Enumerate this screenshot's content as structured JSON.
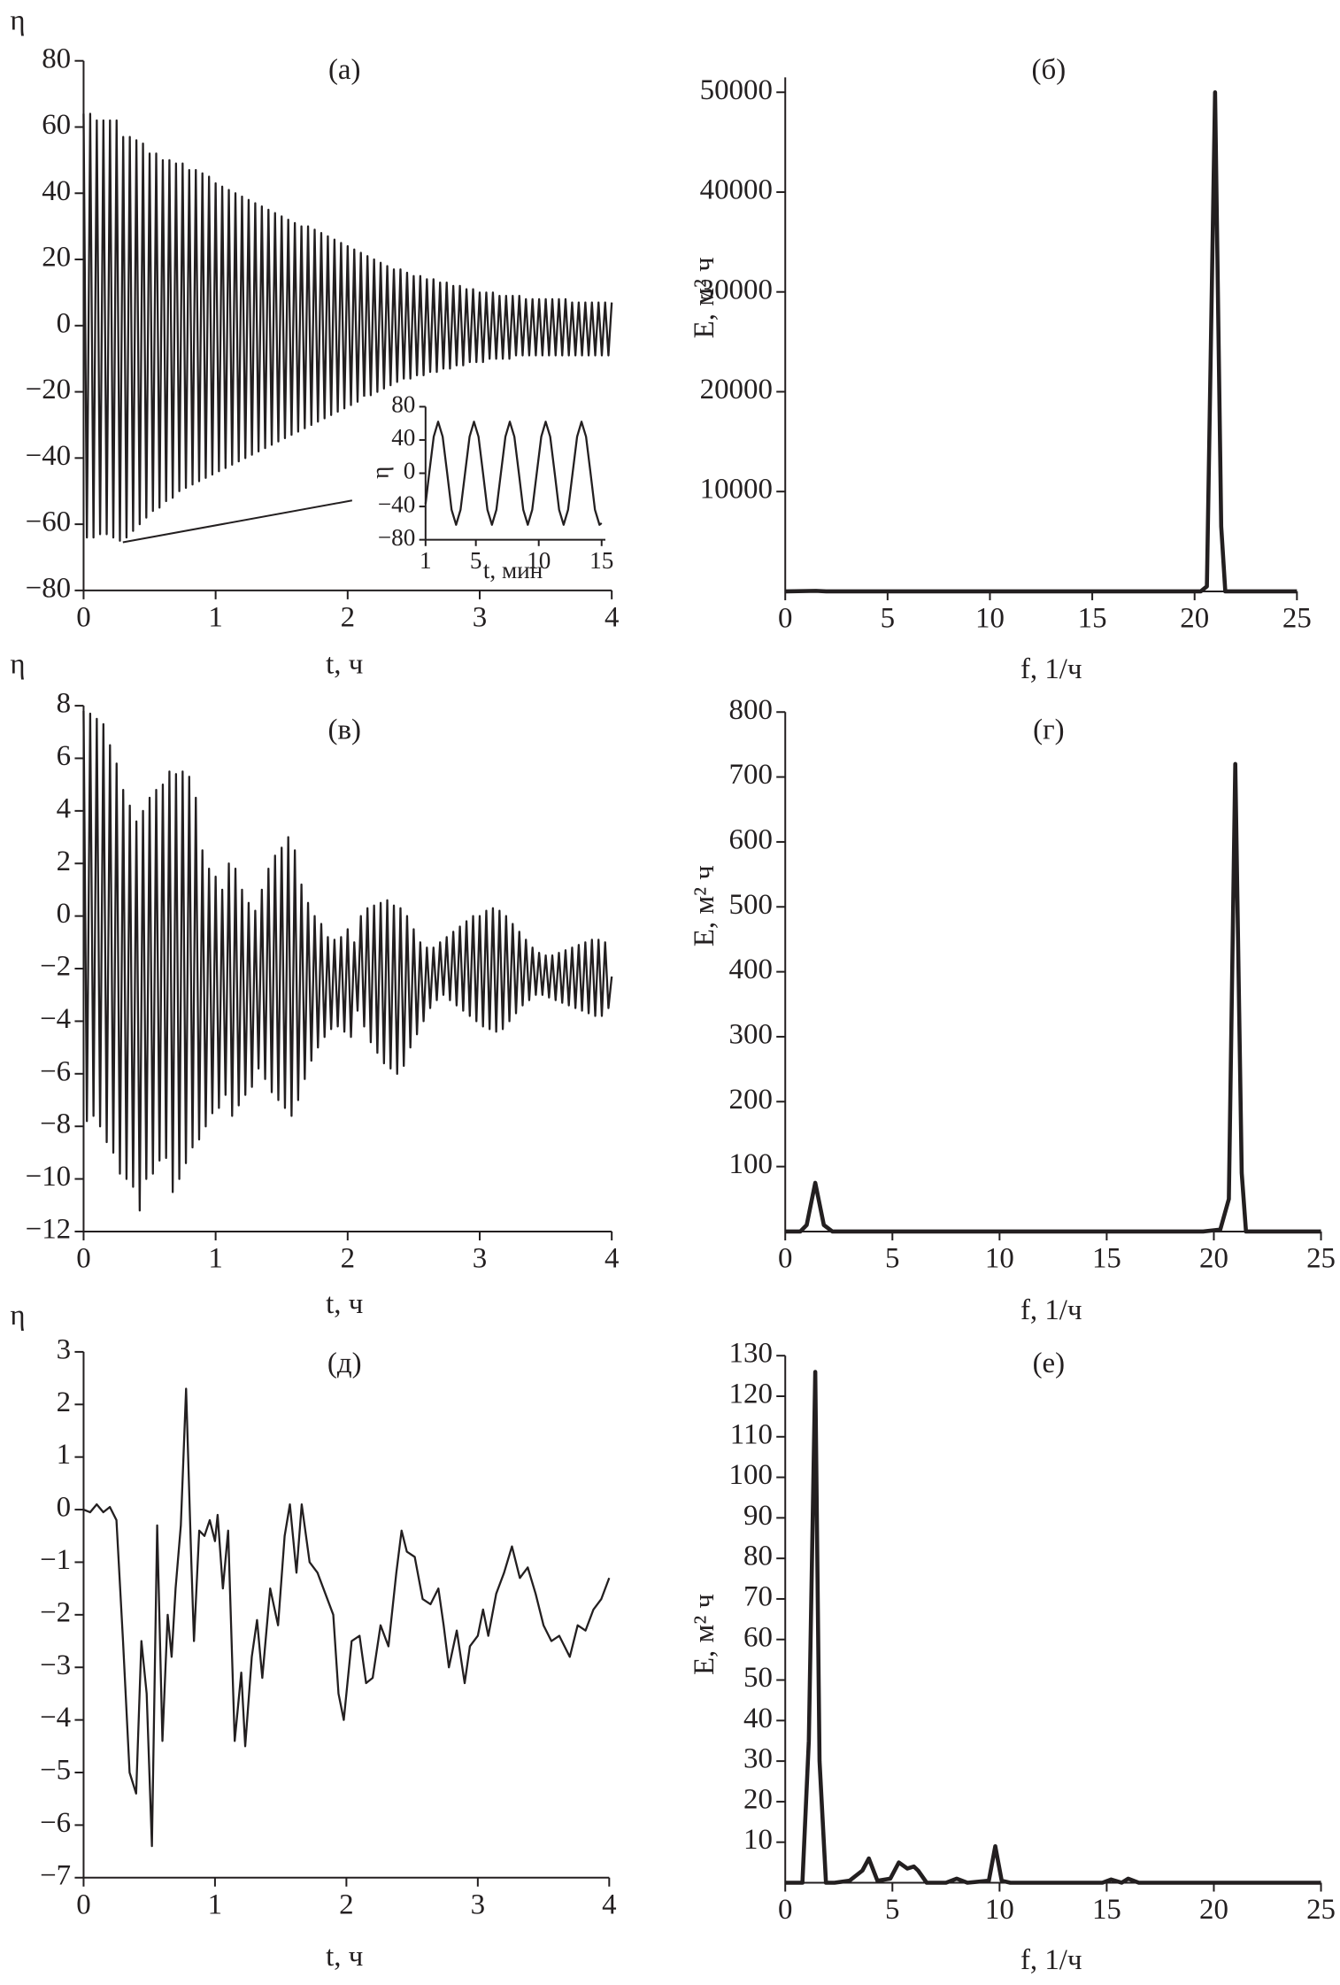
{
  "chart_data": [
    {
      "type": "line",
      "title": "(а)",
      "x_label": "t, ч",
      "y_label": "η",
      "color": "#231f20",
      "xlim": [
        0,
        4
      ],
      "ylim": [
        -80,
        80
      ],
      "xticks": [
        0,
        1,
        2,
        3,
        4
      ],
      "yticks": [
        {
          "value": -80,
          "label": "−80"
        },
        {
          "value": -60,
          "label": "−60"
        },
        {
          "value": -40,
          "label": "−40"
        },
        {
          "value": -20,
          "label": "−20"
        },
        0,
        20,
        40,
        60,
        80
      ],
      "x": [
        0,
        0.025,
        0.05,
        0.075,
        0.1,
        0.125,
        0.15,
        0.175,
        0.2,
        0.225,
        0.25,
        0.275,
        0.3,
        0.325,
        0.35,
        0.375,
        0.4,
        0.425,
        0.45,
        0.475,
        0.5,
        0.525,
        0.55,
        0.575,
        0.6,
        0.625,
        0.65,
        0.675,
        0.7,
        0.725,
        0.75,
        0.775,
        0.8,
        0.825,
        0.85,
        0.875,
        0.9,
        0.925,
        0.95,
        0.975,
        1,
        1.025,
        1.05,
        1.075,
        1.1,
        1.125,
        1.15,
        1.175,
        1.2,
        1.225,
        1.25,
        1.275,
        1.3,
        1.325,
        1.35,
        1.375,
        1.4,
        1.425,
        1.45,
        1.475,
        1.5,
        1.525,
        1.55,
        1.575,
        1.6,
        1.625,
        1.65,
        1.675,
        1.7,
        1.725,
        1.75,
        1.775,
        1.8,
        1.825,
        1.85,
        1.875,
        1.9,
        1.925,
        1.95,
        1.975,
        2,
        2.025,
        2.05,
        2.075,
        2.1,
        2.125,
        2.15,
        2.175,
        2.2,
        2.225,
        2.25,
        2.275,
        2.3,
        2.325,
        2.35,
        2.375,
        2.4,
        2.425,
        2.45,
        2.475,
        2.5,
        2.525,
        2.55,
        2.575,
        2.6,
        2.625,
        2.65,
        2.675,
        2.7,
        2.725,
        2.75,
        2.775,
        2.8,
        2.825,
        2.85,
        2.875,
        2.9,
        2.925,
        2.95,
        2.975,
        3,
        3.025,
        3.05,
        3.075,
        3.1,
        3.125,
        3.15,
        3.175,
        3.2,
        3.225,
        3.25,
        3.275,
        3.3,
        3.325,
        3.35,
        3.375,
        3.4,
        3.425,
        3.45,
        3.475,
        3.5,
        3.525,
        3.55,
        3.575,
        3.6,
        3.625,
        3.65,
        3.675,
        3.7,
        3.725,
        3.75,
        3.775,
        3.8,
        3.825,
        3.85,
        3.875,
        3.9,
        3.925,
        3.95,
        3.975,
        4
      ],
      "values": [
        64,
        -64,
        64,
        -64,
        62,
        -63,
        62,
        -63,
        62,
        -64,
        62,
        -65,
        57,
        -64,
        57,
        -62,
        56,
        -60,
        55,
        -58,
        52,
        -56,
        52,
        -55,
        50,
        -53,
        50,
        -52,
        49,
        -50,
        49,
        -49,
        47,
        -48,
        47,
        -47,
        46,
        -46,
        45,
        -45,
        43,
        -44,
        42,
        -43,
        41,
        -42,
        40,
        -41,
        39,
        -40,
        38,
        -39,
        37,
        -38,
        36,
        -37,
        35,
        -36,
        34,
        -35,
        33,
        -34,
        32,
        -33,
        31,
        -32,
        30,
        -31,
        30,
        -30,
        29,
        -29,
        28,
        -28,
        27,
        -27,
        26,
        -26,
        25,
        -25,
        24,
        -24,
        23,
        -23,
        22,
        -22,
        21,
        -21,
        20,
        -20,
        19,
        -19,
        18,
        -18,
        17,
        -17,
        17,
        -16,
        16,
        -16,
        15,
        -15,
        15,
        -15,
        14,
        -14,
        14,
        -14,
        13,
        -13,
        13,
        -13,
        12,
        -12,
        12,
        -12,
        11,
        -11,
        11,
        -11,
        10,
        -11,
        10,
        -10,
        10,
        -10,
        9,
        -10,
        9,
        -10,
        9,
        -9,
        9,
        -9,
        8,
        -9,
        8,
        -9,
        8,
        -9,
        8,
        -9,
        8,
        -9,
        8,
        -9,
        8,
        -9,
        7,
        -9,
        7,
        -9,
        7,
        -9,
        7,
        -9,
        7,
        -9,
        7,
        -9,
        7
      ]
    },
    {
      "type": "line",
      "title": "(б)",
      "x_label": "f, 1/ч",
      "y_label": "E, м² ч",
      "color": "#231f20",
      "xlim": [
        0,
        25
      ],
      "ylim": [
        0,
        51500
      ],
      "xticks": [
        0,
        5,
        10,
        15,
        20,
        25
      ],
      "yticks": [
        10000,
        20000,
        30000,
        40000,
        50000
      ],
      "x": [
        0,
        1.5,
        2,
        20.3,
        20.6,
        21,
        21.3,
        21.5,
        25
      ],
      "values": [
        0,
        50,
        0,
        0,
        500,
        50000,
        6500,
        0,
        0
      ]
    },
    {
      "type": "line",
      "title": "(в)",
      "x_label": "t, ч",
      "y_label": "η",
      "color": "#231f20",
      "xlim": [
        0,
        4
      ],
      "ylim": [
        -12,
        8
      ],
      "xticks": [
        0,
        1,
        2,
        3,
        4
      ],
      "yticks": [
        {
          "value": -12,
          "label": "−12"
        },
        {
          "value": -10,
          "label": "−10"
        },
        {
          "value": -8,
          "label": "−8"
        },
        {
          "value": -6,
          "label": "−6"
        },
        {
          "value": -4,
          "label": "−4"
        },
        {
          "value": -2,
          "label": "−2"
        },
        0,
        2,
        4,
        6,
        8
      ],
      "x": [
        0,
        0.025,
        0.05,
        0.075,
        0.1,
        0.125,
        0.15,
        0.175,
        0.2,
        0.225,
        0.25,
        0.275,
        0.3,
        0.325,
        0.35,
        0.375,
        0.4,
        0.425,
        0.45,
        0.475,
        0.5,
        0.525,
        0.55,
        0.575,
        0.6,
        0.625,
        0.65,
        0.675,
        0.7,
        0.725,
        0.75,
        0.775,
        0.8,
        0.825,
        0.85,
        0.875,
        0.9,
        0.925,
        0.95,
        0.975,
        1,
        1.025,
        1.05,
        1.075,
        1.1,
        1.125,
        1.15,
        1.175,
        1.2,
        1.225,
        1.25,
        1.275,
        1.3,
        1.325,
        1.35,
        1.375,
        1.4,
        1.425,
        1.45,
        1.475,
        1.5,
        1.525,
        1.55,
        1.575,
        1.6,
        1.625,
        1.65,
        1.675,
        1.7,
        1.725,
        1.75,
        1.775,
        1.8,
        1.825,
        1.85,
        1.875,
        1.9,
        1.925,
        1.95,
        1.975,
        2,
        2.025,
        2.05,
        2.075,
        2.1,
        2.125,
        2.15,
        2.175,
        2.2,
        2.225,
        2.25,
        2.275,
        2.3,
        2.325,
        2.35,
        2.375,
        2.4,
        2.425,
        2.45,
        2.475,
        2.5,
        2.525,
        2.55,
        2.575,
        2.6,
        2.625,
        2.65,
        2.675,
        2.7,
        2.725,
        2.75,
        2.775,
        2.8,
        2.825,
        2.85,
        2.875,
        2.9,
        2.925,
        2.95,
        2.975,
        3,
        3.025,
        3.05,
        3.075,
        3.1,
        3.125,
        3.15,
        3.175,
        3.2,
        3.225,
        3.25,
        3.275,
        3.3,
        3.325,
        3.35,
        3.375,
        3.4,
        3.425,
        3.45,
        3.475,
        3.5,
        3.525,
        3.55,
        3.575,
        3.6,
        3.625,
        3.65,
        3.675,
        3.7,
        3.725,
        3.75,
        3.775,
        3.8,
        3.825,
        3.85,
        3.875,
        3.9,
        3.925,
        3.95,
        3.975,
        4
      ],
      "values": [
        7.8,
        -7.8,
        7.7,
        -7.6,
        7.5,
        -8,
        7.3,
        -8.6,
        6.5,
        -9,
        5.8,
        -9.8,
        4.8,
        -10,
        4.2,
        -10.3,
        3.6,
        -11.2,
        4,
        -10,
        4.5,
        -9.8,
        4.8,
        -9.3,
        5,
        -9.2,
        5.5,
        -10.5,
        5.4,
        -10,
        5.5,
        -9.4,
        5.3,
        -8.8,
        4.5,
        -8.5,
        2.5,
        -8,
        1.8,
        -7.5,
        1.5,
        -7.3,
        1,
        -6.8,
        2,
        -7.6,
        1.8,
        -7.2,
        1,
        -6.8,
        0.5,
        -6.5,
        0.2,
        -5.8,
        1,
        -6.2,
        1.8,
        -6.7,
        2.3,
        -7,
        2.6,
        -7.3,
        3,
        -7.6,
        2.5,
        -7,
        1.2,
        -6.2,
        0.5,
        -5.5,
        0,
        -5,
        -0.3,
        -4.6,
        -0.8,
        -4.3,
        -0.9,
        -4.2,
        -0.8,
        -4.4,
        -0.5,
        -4.6,
        -1,
        -3.6,
        0,
        -4.2,
        0.3,
        -4.8,
        0.4,
        -5.2,
        0.5,
        -5.6,
        0.6,
        -5.8,
        0.4,
        -6,
        0.3,
        -5.7,
        0,
        -5,
        -0.5,
        -4.5,
        -1,
        -4,
        -1.2,
        -3.5,
        -1.2,
        -3.2,
        -1,
        -3,
        -0.8,
        -3.2,
        -0.6,
        -3.4,
        -0.4,
        -3.6,
        -0.2,
        -3.8,
        0,
        -4,
        0,
        -4.2,
        0.2,
        -4.3,
        0.3,
        -4.4,
        0.2,
        -4.3,
        0,
        -4,
        -0.3,
        -3.7,
        -0.6,
        -3.4,
        -0.9,
        -3.2,
        -1.2,
        -3,
        -1.4,
        -3,
        -1.5,
        -3.1,
        -1.5,
        -3.2,
        -1.4,
        -3.3,
        -1.3,
        -3.4,
        -1.2,
        -3.5,
        -1.1,
        -3.6,
        -1,
        -3.7,
        -0.9,
        -3.8,
        -0.9,
        -3.8,
        -1,
        -3.5,
        -2.3
      ]
    },
    {
      "type": "line",
      "title": "(г)",
      "x_label": "f, 1/ч",
      "y_label": "E, м² ч",
      "color": "#231f20",
      "xlim": [
        0,
        25
      ],
      "ylim": [
        0,
        800
      ],
      "xticks": [
        0,
        5,
        10,
        15,
        20,
        25
      ],
      "yticks": [
        100,
        200,
        300,
        400,
        500,
        600,
        700,
        800
      ],
      "x": [
        0,
        0.7,
        1,
        1.4,
        1.8,
        2.2,
        5,
        6,
        19.5,
        20.3,
        20.7,
        21,
        21.3,
        21.5,
        24,
        25
      ],
      "values": [
        0,
        0,
        10,
        75,
        10,
        0,
        0,
        0,
        0,
        3,
        50,
        720,
        90,
        0,
        0,
        0
      ]
    },
    {
      "type": "line",
      "title": "(д)",
      "x_label": "t, ч",
      "y_label": "η",
      "color": "#231f20",
      "xlim": [
        0,
        4
      ],
      "ylim": [
        -7,
        3
      ],
      "xticks": [
        0,
        1,
        2,
        3,
        4
      ],
      "yticks": [
        {
          "value": -7,
          "label": "−7"
        },
        {
          "value": -6,
          "label": "−6"
        },
        {
          "value": -5,
          "label": "−5"
        },
        {
          "value": -4,
          "label": "−4"
        },
        {
          "value": -3,
          "label": "−3"
        },
        {
          "value": -2,
          "label": "−2"
        },
        {
          "value": -1,
          "label": "−1"
        },
        0,
        1,
        2,
        3
      ],
      "x": [
        0,
        0.05,
        0.1,
        0.15,
        0.2,
        0.25,
        0.3,
        0.35,
        0.4,
        0.44,
        0.48,
        0.52,
        0.56,
        0.6,
        0.64,
        0.67,
        0.7,
        0.74,
        0.78,
        0.82,
        0.84,
        0.88,
        0.92,
        0.96,
        1,
        1.02,
        1.06,
        1.1,
        1.15,
        1.2,
        1.23,
        1.28,
        1.32,
        1.36,
        1.42,
        1.48,
        1.53,
        1.57,
        1.62,
        1.66,
        1.72,
        1.78,
        1.84,
        1.9,
        1.94,
        1.98,
        2.04,
        2.1,
        2.15,
        2.2,
        2.26,
        2.32,
        2.38,
        2.42,
        2.46,
        2.52,
        2.58,
        2.64,
        2.7,
        2.74,
        2.78,
        2.84,
        2.9,
        2.94,
        3,
        3.04,
        3.08,
        3.14,
        3.2,
        3.26,
        3.32,
        3.38,
        3.44,
        3.5,
        3.56,
        3.62,
        3.7,
        3.76,
        3.82,
        3.88,
        3.94,
        4
      ],
      "values": [
        0,
        -0.05,
        0.1,
        -0.05,
        0.05,
        -0.2,
        -2.5,
        -5,
        -5.4,
        -2.5,
        -3.5,
        -6.4,
        -0.3,
        -4.4,
        -2,
        -2.8,
        -1.5,
        -0.3,
        2.3,
        -1,
        -2.5,
        -0.4,
        -0.5,
        -0.2,
        -0.6,
        -0.1,
        -1.5,
        -0.4,
        -4.4,
        -3.1,
        -4.5,
        -2.8,
        -2.1,
        -3.2,
        -1.5,
        -2.2,
        -0.5,
        0.1,
        -1.2,
        0.1,
        -1,
        -1.2,
        -1.6,
        -2,
        -3.5,
        -4,
        -2.5,
        -2.4,
        -3.3,
        -3.2,
        -2.2,
        -2.6,
        -1.2,
        -0.4,
        -0.8,
        -0.9,
        -1.7,
        -1.8,
        -1.5,
        -2.2,
        -3,
        -2.3,
        -3.3,
        -2.6,
        -2.4,
        -1.9,
        -2.4,
        -1.6,
        -1.2,
        -0.7,
        -1.3,
        -1.1,
        -1.6,
        -2.2,
        -2.5,
        -2.4,
        -2.8,
        -2.2,
        -2.3,
        -1.9,
        -1.7,
        -1.3
      ]
    },
    {
      "type": "line",
      "title": "(е)",
      "x_label": "f, 1/ч",
      "y_label": "E, м² ч",
      "color": "#231f20",
      "xlim": [
        0,
        25
      ],
      "ylim": [
        0,
        130
      ],
      "xticks": [
        0,
        5,
        10,
        15,
        20,
        25
      ],
      "yticks": [
        10,
        20,
        30,
        40,
        50,
        60,
        70,
        80,
        90,
        100,
        110,
        120,
        130
      ],
      "x": [
        0,
        0.8,
        1.1,
        1.4,
        1.6,
        1.9,
        2.3,
        3,
        3.6,
        3.9,
        4.3,
        4.9,
        5.3,
        5.7,
        6,
        6.2,
        6.6,
        7.5,
        8,
        8.5,
        9.5,
        9.8,
        10.1,
        10.5,
        14.8,
        15.2,
        15.7,
        16,
        16.5,
        25
      ],
      "values": [
        0,
        0,
        35,
        126,
        30,
        0,
        0,
        0.5,
        3,
        6,
        0.5,
        1,
        5,
        3.5,
        4,
        3,
        0,
        0,
        1,
        0,
        0.5,
        9,
        0.5,
        0,
        0,
        0.8,
        0,
        1,
        0,
        0
      ]
    },
    {
      "type": "line",
      "x_label": "t, мин",
      "y_label": "η",
      "color": "#231f20",
      "xlim": [
        1,
        15.3
      ],
      "ylim": [
        -80,
        80
      ],
      "xticks": [
        1,
        5,
        10,
        15
      ],
      "yticks": [
        {
          "value": -80,
          "label": "−80"
        },
        {
          "value": -40,
          "label": "−40"
        },
        0,
        40,
        80
      ],
      "x": [
        1,
        1.29,
        1.65,
        2,
        2.36,
        2.72,
        3.07,
        3.43,
        3.78,
        4.14,
        4.5,
        4.85,
        5.21,
        5.57,
        5.92,
        6.28,
        6.63,
        6.99,
        7.35,
        7.7,
        8.06,
        8.42,
        8.77,
        9.13,
        9.48,
        9.84,
        10.2,
        10.55,
        10.91,
        11.27,
        11.62,
        11.98,
        12.33,
        12.69,
        13.05,
        13.4,
        13.76,
        14.12,
        14.47,
        14.83,
        15
      ],
      "values": [
        -37,
        0,
        44,
        62,
        44,
        0,
        -44,
        -62,
        -44,
        0,
        44,
        62,
        44,
        0,
        -44,
        -62,
        -44,
        0,
        44,
        62,
        44,
        0,
        -44,
        -62,
        -44,
        0,
        44,
        62,
        44,
        0,
        -44,
        -62,
        -44,
        0,
        44,
        62,
        44,
        0,
        -44,
        -62,
        -60
      ]
    }
  ]
}
